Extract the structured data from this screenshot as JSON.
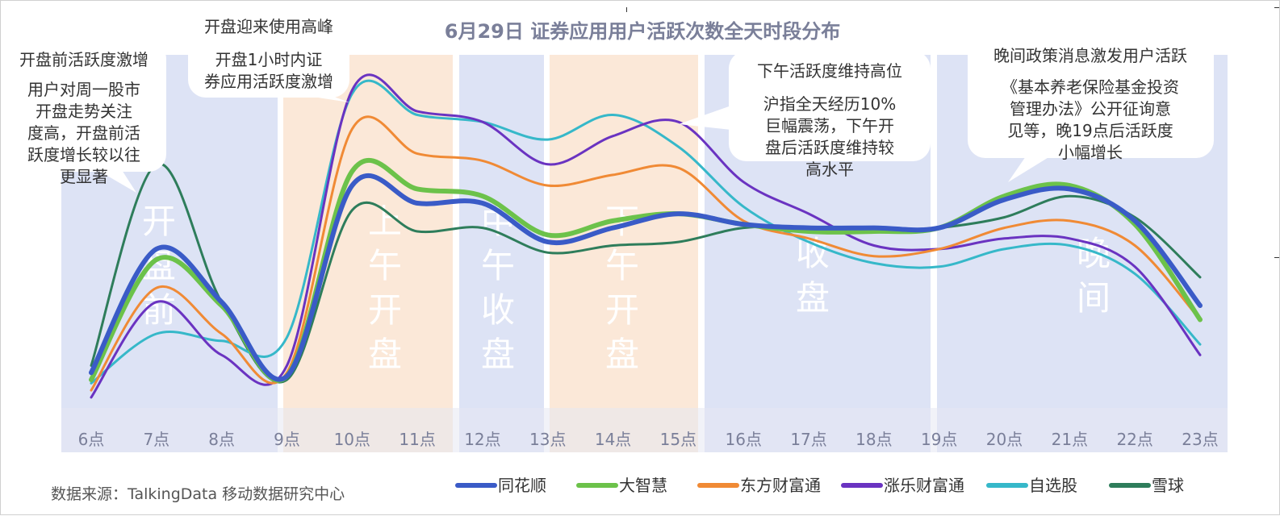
{
  "chart_data": {
    "type": "line",
    "title": "6月29日 证券应用用户活跃次数全天时段分布",
    "xlabel": "",
    "ylabel": "",
    "ylim": [
      0,
      100
    ],
    "categories": [
      "6点",
      "7点",
      "8点",
      "9点",
      "10点",
      "11点",
      "12点",
      "13点",
      "14点",
      "15点",
      "16点",
      "17点",
      "18点",
      "19点",
      "20点",
      "21点",
      "22点",
      "23点"
    ],
    "grid": false,
    "legend_position": "bottom",
    "series": [
      {
        "name": "同花顺",
        "color": "#3a5bc7",
        "width": 6,
        "values": [
          10,
          45,
          30,
          9,
          63,
          58,
          58,
          47,
          51,
          55,
          52,
          51,
          51,
          51,
          59,
          62,
          53,
          29
        ]
      },
      {
        "name": "大智慧",
        "color": "#6cc24a",
        "width": 6,
        "values": [
          8,
          42,
          29,
          9,
          67,
          62,
          60,
          49,
          53,
          55,
          52,
          50,
          50,
          51,
          60,
          63,
          52,
          25
        ]
      },
      {
        "name": "东方财富通",
        "color": "#f08a35",
        "width": 3,
        "values": [
          5,
          34,
          21,
          10,
          79,
          72,
          70,
          63,
          66,
          68,
          53,
          48,
          43,
          45,
          51,
          53,
          46,
          25
        ]
      },
      {
        "name": "涨乐财富通",
        "color": "#6a33c1",
        "width": 3,
        "values": [
          3,
          30,
          15,
          12,
          90,
          84,
          81,
          69,
          77,
          81,
          64,
          55,
          46,
          45,
          48,
          48,
          40,
          15
        ]
      },
      {
        "name": "自选股",
        "color": "#36b8c9",
        "width": 3,
        "values": [
          7,
          21,
          19,
          20,
          89,
          83,
          81,
          76,
          83,
          74,
          57,
          47,
          41,
          40,
          45,
          46,
          38,
          18
        ]
      },
      {
        "name": "雪球",
        "color": "#2e7d5b",
        "width": 3,
        "values": [
          12,
          69,
          30,
          8,
          56,
          50,
          51,
          44,
          46,
          47,
          51,
          51,
          50,
          51,
          54,
          60,
          54,
          37
        ]
      }
    ],
    "bands": [
      {
        "label": "开盘前",
        "from": 6,
        "to": 9,
        "color": "#dde3f5"
      },
      {
        "label": "上午开盘",
        "from": 9,
        "to": 11.6,
        "color": "#fbe8d8"
      },
      {
        "label": "中午收盘",
        "from": 11.6,
        "to": 12.9,
        "color": "#dde3f5"
      },
      {
        "label": "下午开盘",
        "from": 12.9,
        "to": 15.2,
        "color": "#fbe8d8"
      },
      {
        "label": "收盘",
        "from": 15.2,
        "to": 18.8,
        "color": "#dde3f5"
      },
      {
        "label": "晚间",
        "from": 18.8,
        "to": 23.3,
        "color": "#dde3f5"
      }
    ],
    "annotations": [
      {
        "title": "开盘前活跃度激增",
        "body": [
          "用户对周一股市",
          "开盘走势关注",
          "度高，开盘前活",
          "跃度增长较以往",
          "更显著"
        ]
      },
      {
        "title": "开盘迎来使用高峰",
        "body": [
          "开盘1小时内证",
          "券应用活跃度激增"
        ]
      },
      {
        "title": "下午活跃度维持高位",
        "body": [
          "沪指全天经历10%",
          "巨幅震荡，下午开",
          "盘后活跃度维持较",
          "高水平"
        ]
      },
      {
        "title": "晚间政策消息激发用户活跃",
        "body": [
          "《基本养老保险基金投资",
          "管理办法》公开征询意",
          "见等，晚19点后活跃度",
          "小幅增长"
        ]
      }
    ]
  },
  "source": "数据来源：TalkingData 移动数据研究中心"
}
